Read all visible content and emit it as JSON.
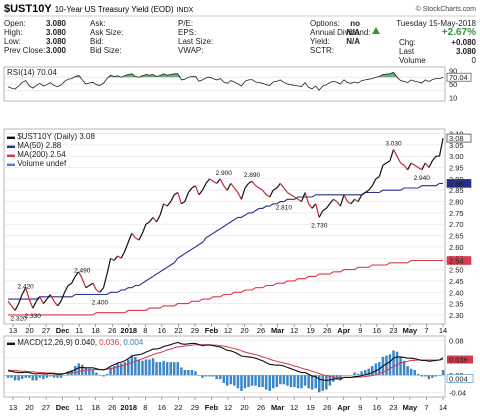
{
  "header": {
    "symbol": "$UST10Y",
    "name": "10-Year US Treasury Yield (EOD)",
    "exchange": "INDX",
    "copyright": "© StockCharts.com",
    "date": "Tuesday  15-May-2018",
    "change_pct": "+2.67%",
    "chg_label": "Chg:",
    "chg_value": "+0.080",
    "last_label": "Last",
    "last_value": "3.080",
    "volume_label": "Volume",
    "volume_value": "0",
    "rows": [
      {
        "l1": "Open:",
        "v1": "3.080",
        "l2": "Ask:",
        "v2": "",
        "l3": "P/E:",
        "v3": "",
        "l4": "Options:",
        "v4": "no"
      },
      {
        "l1": "High:",
        "v1": "3.080",
        "l2": "Ask Size:",
        "v2": "",
        "l3": "EPS:",
        "v3": "",
        "l4": "Annual Dividend:",
        "v4": "N/A"
      },
      {
        "l1": "Low:",
        "v1": "3.080",
        "l2": "Bid:",
        "v2": "",
        "l3": "Last Size:",
        "v3": "",
        "l4": "Yield:",
        "v4": "N/A"
      },
      {
        "l1": "Prev Close:",
        "v1": "3.000",
        "l2": "Bid Size:",
        "v2": "",
        "l3": "VWAP:",
        "v3": "",
        "l4": "SCTR:",
        "v4": ""
      }
    ]
  },
  "rsi": {
    "label": "RSI(14) 70.04",
    "ticks": [
      "90",
      "50",
      "10"
    ],
    "current": "70.04"
  },
  "price_legend": {
    "title": "$UST10Y (Daily) 3.08",
    "ma50": "MA(50) 2.88",
    "ma200": "MA(200) 2.54",
    "volume": "Volume undef"
  },
  "macd": {
    "label_prefix": "MACD(12,26,9)",
    "v1": "0.040,",
    "v2": "0.036,",
    "v3": "0.004",
    "ticks": [
      "0.08",
      "0.04",
      "0.00",
      "-0.04"
    ],
    "badges": [
      "0.036",
      "0.004"
    ]
  },
  "colors": {
    "price": "#111111",
    "down": "#c0283c",
    "ma50": "#2a2f8f",
    "ma200": "#d63a4b",
    "macd_hist": "#3a86c8",
    "rsi_fill": "#2e8b3e"
  },
  "chart_data": {
    "type": "line",
    "title": "$UST10Y 10-Year US Treasury Yield (EOD)",
    "x_labels": [
      "13",
      "20",
      "27",
      "Dec",
      "11",
      "18",
      "26",
      "2018",
      "8",
      "16",
      "22",
      "29",
      "Feb",
      "12",
      "20",
      "26",
      "Mar",
      "12",
      "19",
      "26",
      "Apr",
      "9",
      "16",
      "23",
      "May",
      "7",
      "14"
    ],
    "y_ticks": [
      "3.10",
      "3.05",
      "3.00",
      "2.95",
      "2.90",
      "2.85",
      "2.80",
      "2.75",
      "2.70",
      "2.65",
      "2.60",
      "2.55",
      "2.50",
      "2.45",
      "2.40",
      "2.35",
      "2.30"
    ],
    "ylim": [
      2.26,
      3.12
    ],
    "annotations": [
      {
        "text": "2.320",
        "x": 3,
        "y": 2.32
      },
      {
        "text": "2.420",
        "x": 5,
        "y": 2.4
      },
      {
        "text": "2.330",
        "x": 7,
        "y": 2.33
      },
      {
        "text": "2.490",
        "x": 21,
        "y": 2.47
      },
      {
        "text": "2.400",
        "x": 26,
        "y": 2.39
      },
      {
        "text": "2.900",
        "x": 61,
        "y": 2.9
      },
      {
        "text": "2.890",
        "x": 69,
        "y": 2.89
      },
      {
        "text": "2.810",
        "x": 78,
        "y": 2.81
      },
      {
        "text": "2.730",
        "x": 88,
        "y": 2.73
      },
      {
        "text": "3.030",
        "x": 109,
        "y": 3.03
      },
      {
        "text": "2.940",
        "x": 117,
        "y": 2.94
      }
    ],
    "series": [
      {
        "name": "$UST10Y (Daily) 3.08",
        "values": [
          2.36,
          2.34,
          2.32,
          2.35,
          2.39,
          2.42,
          2.37,
          2.33,
          2.36,
          2.38,
          2.35,
          2.37,
          2.39,
          2.36,
          2.34,
          2.36,
          2.4,
          2.43,
          2.44,
          2.47,
          2.49,
          2.46,
          2.42,
          2.43,
          2.44,
          2.41,
          2.4,
          2.42,
          2.48,
          2.55,
          2.54,
          2.56,
          2.55,
          2.58,
          2.62,
          2.66,
          2.64,
          2.63,
          2.66,
          2.7,
          2.71,
          2.73,
          2.71,
          2.74,
          2.79,
          2.78,
          2.8,
          2.83,
          2.84,
          2.79,
          2.8,
          2.84,
          2.86,
          2.87,
          2.83,
          2.85,
          2.88,
          2.9,
          2.89,
          2.88,
          2.9,
          2.87,
          2.85,
          2.88,
          2.86,
          2.84,
          2.81,
          2.86,
          2.88,
          2.89,
          2.87,
          2.86,
          2.85,
          2.83,
          2.82,
          2.85,
          2.86,
          2.88,
          2.86,
          2.84,
          2.83,
          2.82,
          2.81,
          2.8,
          2.84,
          2.79,
          2.77,
          2.79,
          2.73,
          2.76,
          2.77,
          2.79,
          2.81,
          2.8,
          2.78,
          2.83,
          2.8,
          2.79,
          2.81,
          2.8,
          2.83,
          2.84,
          2.85,
          2.87,
          2.9,
          2.91,
          2.96,
          2.97,
          2.98,
          3.03,
          3.0,
          2.97,
          2.96,
          2.94,
          2.97,
          2.96,
          2.95,
          2.94,
          2.97,
          2.95,
          2.98,
          3.0,
          3.0,
          3.08
        ]
      },
      {
        "name": "MA(50) 2.88",
        "values": [
          2.37,
          2.37,
          2.37,
          2.37,
          2.37,
          2.37,
          2.37,
          2.37,
          2.37,
          2.38,
          2.38,
          2.38,
          2.38,
          2.38,
          2.38,
          2.38,
          2.38,
          2.38,
          2.38,
          2.39,
          2.39,
          2.39,
          2.39,
          2.39,
          2.39,
          2.39,
          2.39,
          2.39,
          2.39,
          2.4,
          2.4,
          2.4,
          2.41,
          2.41,
          2.42,
          2.42,
          2.43,
          2.43,
          2.44,
          2.45,
          2.46,
          2.47,
          2.48,
          2.49,
          2.5,
          2.51,
          2.52,
          2.53,
          2.55,
          2.56,
          2.57,
          2.58,
          2.59,
          2.6,
          2.61,
          2.62,
          2.64,
          2.65,
          2.66,
          2.67,
          2.68,
          2.69,
          2.7,
          2.71,
          2.72,
          2.73,
          2.73,
          2.74,
          2.75,
          2.75,
          2.76,
          2.77,
          2.77,
          2.78,
          2.78,
          2.79,
          2.79,
          2.8,
          2.8,
          2.81,
          2.81,
          2.81,
          2.82,
          2.82,
          2.82,
          2.82,
          2.82,
          2.83,
          2.83,
          2.83,
          2.83,
          2.83,
          2.83,
          2.83,
          2.83,
          2.83,
          2.83,
          2.83,
          2.83,
          2.83,
          2.83,
          2.84,
          2.84,
          2.84,
          2.84,
          2.84,
          2.85,
          2.85,
          2.85,
          2.85,
          2.85,
          2.85,
          2.86,
          2.86,
          2.86,
          2.86,
          2.86,
          2.87,
          2.87,
          2.87,
          2.87,
          2.87,
          2.88,
          2.88
        ]
      },
      {
        "name": "MA(200) 2.54",
        "values": [
          2.3,
          2.3,
          2.3,
          2.3,
          2.3,
          2.3,
          2.3,
          2.3,
          2.3,
          2.3,
          2.3,
          2.3,
          2.3,
          2.3,
          2.3,
          2.3,
          2.3,
          2.3,
          2.3,
          2.3,
          2.3,
          2.3,
          2.3,
          2.3,
          2.3,
          2.31,
          2.31,
          2.31,
          2.31,
          2.31,
          2.31,
          2.31,
          2.31,
          2.31,
          2.32,
          2.32,
          2.32,
          2.32,
          2.32,
          2.32,
          2.33,
          2.33,
          2.33,
          2.33,
          2.34,
          2.34,
          2.34,
          2.34,
          2.35,
          2.35,
          2.35,
          2.35,
          2.36,
          2.36,
          2.36,
          2.37,
          2.37,
          2.37,
          2.38,
          2.38,
          2.38,
          2.39,
          2.39,
          2.39,
          2.4,
          2.4,
          2.4,
          2.41,
          2.41,
          2.41,
          2.42,
          2.42,
          2.42,
          2.43,
          2.43,
          2.43,
          2.44,
          2.44,
          2.44,
          2.45,
          2.45,
          2.45,
          2.46,
          2.46,
          2.46,
          2.47,
          2.47,
          2.47,
          2.48,
          2.48,
          2.48,
          2.48,
          2.49,
          2.49,
          2.49,
          2.5,
          2.5,
          2.5,
          2.5,
          2.51,
          2.51,
          2.51,
          2.51,
          2.52,
          2.52,
          2.52,
          2.52,
          2.52,
          2.53,
          2.53,
          2.53,
          2.53,
          2.53,
          2.53,
          2.54,
          2.54,
          2.54,
          2.54,
          2.54,
          2.54,
          2.54,
          2.54,
          2.54,
          2.54
        ]
      }
    ],
    "rsi_values": [
      42,
      38,
      35,
      44,
      55,
      60,
      45,
      38,
      46,
      52,
      44,
      48,
      54,
      46,
      42,
      47,
      58,
      64,
      66,
      72,
      75,
      62,
      50,
      53,
      55,
      48,
      46,
      52,
      66,
      76,
      72,
      74,
      70,
      74,
      78,
      80,
      72,
      70,
      74,
      78,
      76,
      78,
      72,
      75,
      80,
      76,
      78,
      80,
      80,
      62,
      64,
      70,
      72,
      72,
      58,
      62,
      68,
      70,
      66,
      62,
      66,
      56,
      52,
      60,
      56,
      50,
      44,
      58,
      62,
      63,
      56,
      54,
      52,
      48,
      46,
      56,
      58,
      62,
      55,
      50,
      48,
      46,
      44,
      43,
      54,
      40,
      36,
      44,
      32,
      44,
      48,
      54,
      58,
      55,
      50,
      62,
      54,
      52,
      56,
      53,
      60,
      62,
      64,
      66,
      70,
      72,
      78,
      79,
      80,
      84,
      70,
      60,
      58,
      54,
      62,
      58,
      56,
      53,
      62,
      57,
      63,
      66,
      66,
      70
    ],
    "macd_line": [
      0.01,
      0.009,
      0.007,
      0.006,
      0.006,
      0.007,
      0.006,
      0.004,
      0.003,
      0.004,
      0.003,
      0.003,
      0.004,
      0.003,
      0.002,
      0.002,
      0.004,
      0.007,
      0.009,
      0.013,
      0.017,
      0.018,
      0.017,
      0.017,
      0.017,
      0.015,
      0.013,
      0.012,
      0.015,
      0.021,
      0.024,
      0.028,
      0.03,
      0.033,
      0.038,
      0.044,
      0.046,
      0.047,
      0.049,
      0.053,
      0.056,
      0.06,
      0.06,
      0.062,
      0.066,
      0.068,
      0.07,
      0.073,
      0.075,
      0.072,
      0.071,
      0.072,
      0.073,
      0.073,
      0.07,
      0.068,
      0.069,
      0.069,
      0.068,
      0.066,
      0.065,
      0.061,
      0.057,
      0.056,
      0.053,
      0.049,
      0.044,
      0.043,
      0.042,
      0.041,
      0.039,
      0.036,
      0.033,
      0.029,
      0.025,
      0.024,
      0.023,
      0.023,
      0.021,
      0.018,
      0.015,
      0.012,
      0.009,
      0.006,
      0.006,
      0.002,
      -0.002,
      -0.003,
      -0.009,
      -0.011,
      -0.012,
      -0.011,
      -0.009,
      -0.008,
      -0.009,
      -0.005,
      -0.005,
      -0.005,
      -0.003,
      -0.003,
      -0.001,
      0.001,
      0.003,
      0.006,
      0.01,
      0.014,
      0.021,
      0.026,
      0.031,
      0.039,
      0.042,
      0.042,
      0.041,
      0.039,
      0.039,
      0.038,
      0.036,
      0.034,
      0.034,
      0.032,
      0.033,
      0.034,
      0.035,
      0.04
    ],
    "macd_signal": [
      0.012,
      0.011,
      0.011,
      0.01,
      0.009,
      0.009,
      0.008,
      0.008,
      0.007,
      0.006,
      0.006,
      0.005,
      0.005,
      0.005,
      0.004,
      0.004,
      0.004,
      0.004,
      0.005,
      0.006,
      0.008,
      0.01,
      0.011,
      0.012,
      0.013,
      0.013,
      0.013,
      0.013,
      0.014,
      0.015,
      0.017,
      0.019,
      0.021,
      0.023,
      0.026,
      0.029,
      0.032,
      0.035,
      0.038,
      0.041,
      0.044,
      0.047,
      0.05,
      0.052,
      0.055,
      0.058,
      0.06,
      0.063,
      0.065,
      0.066,
      0.067,
      0.068,
      0.069,
      0.07,
      0.07,
      0.07,
      0.07,
      0.07,
      0.069,
      0.069,
      0.068,
      0.067,
      0.065,
      0.063,
      0.061,
      0.059,
      0.056,
      0.053,
      0.051,
      0.049,
      0.047,
      0.045,
      0.042,
      0.04,
      0.037,
      0.034,
      0.032,
      0.03,
      0.028,
      0.026,
      0.024,
      0.021,
      0.019,
      0.016,
      0.014,
      0.012,
      0.009,
      0.007,
      0.004,
      0.001,
      -0.001,
      -0.003,
      -0.004,
      -0.005,
      -0.005,
      -0.005,
      -0.005,
      -0.005,
      -0.005,
      -0.004,
      -0.004,
      -0.003,
      -0.002,
      -0.001,
      0.001,
      0.004,
      0.007,
      0.011,
      0.015,
      0.02,
      0.024,
      0.028,
      0.03,
      0.032,
      0.034,
      0.034,
      0.035,
      0.035,
      0.035,
      0.035,
      0.035,
      0.035,
      0.035,
      0.036
    ]
  }
}
